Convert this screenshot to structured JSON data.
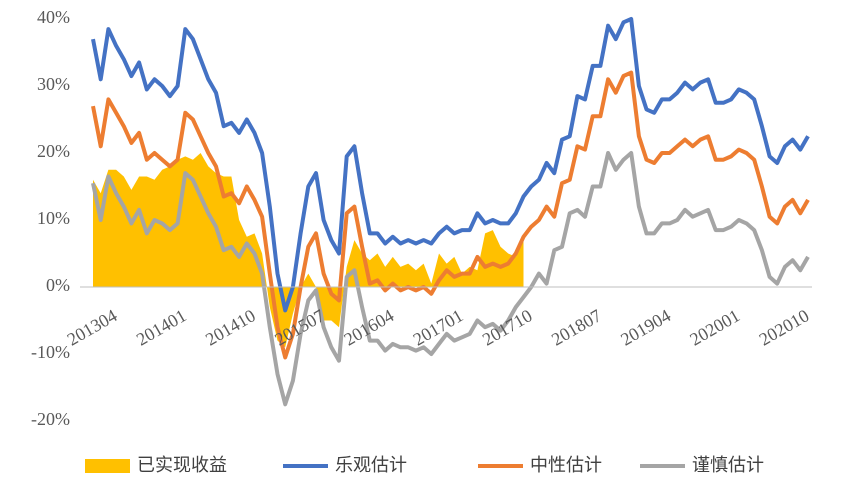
{
  "chart_data": {
    "type": "line",
    "categories": [
      "201304",
      null,
      null,
      null,
      null,
      null,
      null,
      null,
      null,
      "201401",
      null,
      null,
      null,
      null,
      null,
      null,
      null,
      null,
      "201410",
      null,
      null,
      null,
      null,
      null,
      null,
      null,
      null,
      "201507",
      null,
      null,
      null,
      null,
      null,
      null,
      null,
      null,
      "201604",
      null,
      null,
      null,
      null,
      null,
      null,
      null,
      null,
      "201701",
      null,
      null,
      null,
      null,
      null,
      null,
      null,
      null,
      "201710",
      null,
      null,
      null,
      null,
      null,
      null,
      null,
      null,
      "201807",
      null,
      null,
      null,
      null,
      null,
      null,
      null,
      null,
      "201904",
      null,
      null,
      null,
      null,
      null,
      null,
      null,
      null,
      "202001",
      null,
      null,
      null,
      null,
      null,
      null,
      null,
      null,
      "202010",
      null,
      null,
      null
    ],
    "ylim": [
      -20,
      40
    ],
    "yticks": [
      {
        "value": -20,
        "label": "-20%"
      },
      {
        "value": -10,
        "label": "-10%"
      },
      {
        "value": 0,
        "label": "0%"
      },
      {
        "value": 10,
        "label": "10%"
      },
      {
        "value": 20,
        "label": "20%"
      },
      {
        "value": 30,
        "label": "30%"
      },
      {
        "value": 40,
        "label": "40%"
      }
    ],
    "grid": false,
    "legend": "bottom",
    "series": [
      {
        "name": "已实现收益",
        "type": "area",
        "color": "#ffc000",
        "values": [
          16,
          14,
          17.5,
          17.5,
          16.5,
          14.5,
          16.5,
          16.5,
          16,
          17.5,
          18,
          19,
          19.5,
          19,
          20,
          18,
          17,
          16.5,
          16.5,
          10,
          7.5,
          8,
          5,
          -3,
          -8,
          -9,
          -4,
          0,
          2,
          0,
          -5,
          -5,
          -6,
          3,
          7,
          5,
          4,
          5,
          3,
          4.5,
          3,
          3.5,
          2.5,
          3.5,
          0.5,
          5,
          3.5,
          4.5,
          2,
          3,
          2.5,
          8,
          8.5,
          6,
          5,
          4.5,
          7,
          null,
          null,
          null,
          null,
          null,
          null,
          null,
          null,
          null,
          null,
          null,
          null,
          null,
          null,
          null,
          null,
          null,
          null,
          null,
          null,
          null,
          null,
          null,
          null,
          null,
          null,
          null,
          null,
          null,
          null,
          null,
          null,
          null,
          null,
          null,
          null,
          null
        ]
      },
      {
        "name": "乐观估计",
        "type": "line",
        "color": "#4472c4",
        "values": [
          37,
          31,
          38.5,
          36,
          34,
          31.5,
          33.5,
          29.5,
          31,
          30,
          28.5,
          30,
          38.5,
          37,
          34,
          31,
          29,
          24,
          24.5,
          23,
          25,
          23,
          20,
          12,
          2,
          -3.5,
          0,
          8,
          15,
          17,
          10,
          7,
          5,
          19.5,
          21,
          14,
          8,
          8,
          6.5,
          7.5,
          6.5,
          7,
          6.5,
          7,
          6.5,
          8,
          9,
          8,
          8.5,
          8.5,
          11,
          9.5,
          10,
          9.5,
          9.5,
          11,
          13.5,
          15,
          16,
          18.5,
          17,
          22,
          22.5,
          28.5,
          28,
          33,
          33,
          39,
          37,
          39.5,
          40,
          30,
          26.5,
          26,
          28,
          28,
          29,
          30.5,
          29.5,
          30.5,
          31,
          27.5,
          27.5,
          28,
          29.5,
          29,
          28,
          24,
          19.5,
          18.5,
          21,
          22,
          20.5,
          22.5
        ]
      },
      {
        "name": "中性估计",
        "type": "line",
        "color": "#ed7d31",
        "values": [
          27,
          21,
          28,
          26,
          24,
          21.5,
          23,
          19,
          20,
          19,
          18,
          19,
          26,
          25,
          22.5,
          20,
          18,
          13.5,
          14,
          12.5,
          15,
          13,
          10.5,
          2,
          -6,
          -10.5,
          -7,
          0,
          6,
          8,
          2,
          -1,
          -2,
          11,
          12,
          6,
          0.5,
          1,
          -0.5,
          0.5,
          -0.5,
          0,
          -0.5,
          0,
          -1,
          1,
          2.5,
          1.5,
          2,
          2,
          4.5,
          3,
          3.5,
          3,
          3.5,
          5,
          7.5,
          9,
          10,
          12,
          10.5,
          15.5,
          16,
          21,
          20.5,
          25.5,
          25.5,
          31,
          29,
          31.5,
          32,
          22.5,
          19,
          18.5,
          20,
          20,
          21,
          22,
          21,
          22,
          22.5,
          19,
          19,
          19.5,
          20.5,
          20,
          19,
          15,
          10.5,
          9.5,
          12,
          13,
          11,
          13
        ]
      },
      {
        "name": "谨慎估计",
        "type": "line",
        "color": "#a5a5a5",
        "values": [
          15.5,
          10,
          16.5,
          14,
          12,
          9.5,
          11.5,
          8,
          10,
          9.5,
          8.5,
          9.5,
          17,
          16,
          13.5,
          11,
          9,
          5.5,
          6,
          4.5,
          6.5,
          5,
          2,
          -6,
          -13,
          -17.5,
          -14,
          -7,
          -2,
          -0.5,
          -6,
          -9,
          -11,
          1.5,
          2.5,
          -3,
          -8,
          -8,
          -9.5,
          -8.5,
          -9,
          -9,
          -9.5,
          -9,
          -10,
          -8.5,
          -7,
          -8,
          -7.5,
          -7,
          -5,
          -6,
          -5.5,
          -6.5,
          -5,
          -3,
          -1.5,
          0,
          2,
          0.5,
          5.5,
          6,
          11,
          11.5,
          10.5,
          15,
          15,
          20,
          17.5,
          19,
          20,
          12,
          8,
          8,
          9.5,
          9.5,
          10,
          11.5,
          10.5,
          11,
          11.5,
          8.5,
          8.5,
          9,
          10,
          9.5,
          8.5,
          5.5,
          1.5,
          0.5,
          3,
          4,
          2.5,
          4.5
        ]
      }
    ]
  }
}
